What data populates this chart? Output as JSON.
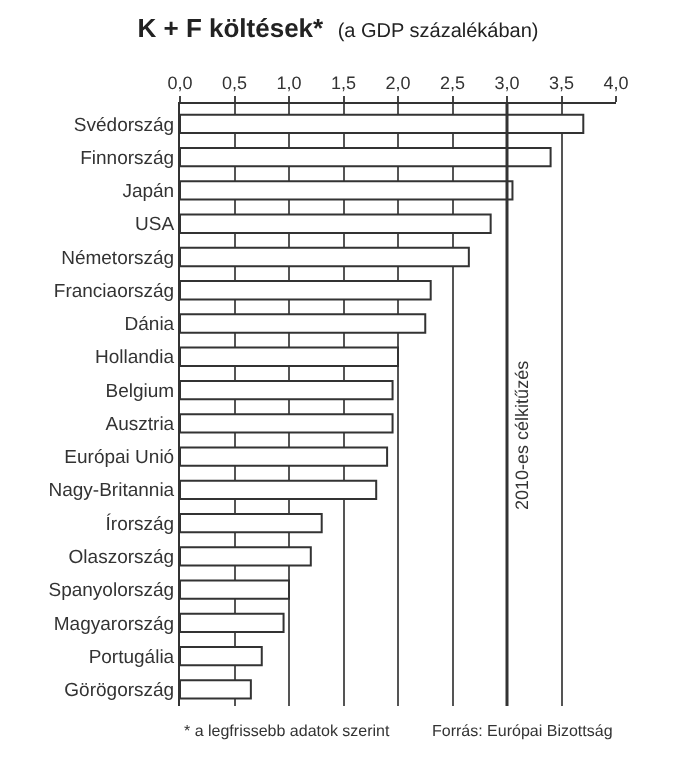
{
  "chart_data": {
    "type": "bar",
    "orientation": "horizontal",
    "title": "K + F költések*",
    "subtitle": "(a GDP százalékában)",
    "categories": [
      "Svédország",
      "Finnország",
      "Japán",
      "USA",
      "Németország",
      "Franciaország",
      "Dánia",
      "Hollandia",
      "Belgium",
      "Ausztria",
      "Európai Unió",
      "Nagy-Britannia",
      "Írország",
      "Olaszország",
      "Spanyolország",
      "Magyarország",
      "Portugália",
      "Görögország"
    ],
    "values": [
      3.7,
      3.4,
      3.05,
      2.85,
      2.65,
      2.3,
      2.25,
      2.0,
      1.95,
      1.95,
      1.9,
      1.8,
      1.3,
      1.2,
      1.0,
      0.95,
      0.75,
      0.65
    ],
    "color": "#ffffff",
    "xlim": [
      0,
      4.0
    ],
    "xticks": [
      {
        "value": 0,
        "label": "0,0"
      },
      {
        "value": 0.5,
        "label": "0,5"
      },
      {
        "value": 1,
        "label": "1,0"
      },
      {
        "value": 1.5,
        "label": "1,5"
      },
      {
        "value": 2,
        "label": "2,0"
      },
      {
        "value": 2.5,
        "label": "2,5"
      },
      {
        "value": 3,
        "label": "3,0"
      },
      {
        "value": 3.5,
        "label": "3,5"
      },
      {
        "value": 4,
        "label": "4,0"
      }
    ],
    "grid": "x",
    "ref_lines": [
      {
        "axis": "x",
        "value": 3.0,
        "label": "2010-es célkitűzés",
        "color": "#333333"
      }
    ],
    "annotations": [
      "* a legfrissebb adatok szerint",
      "Forrás: Európai Bizottság"
    ]
  }
}
